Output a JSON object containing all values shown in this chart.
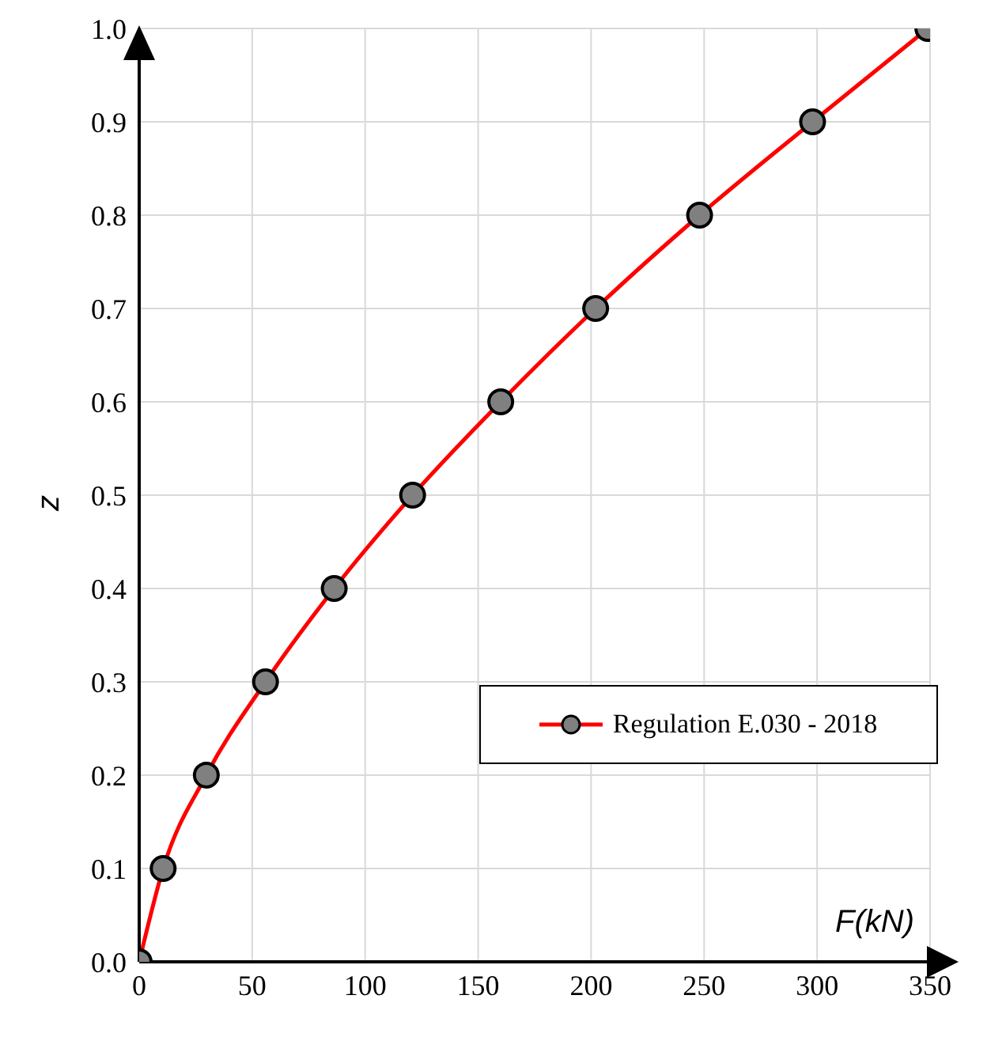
{
  "chart_data": {
    "type": "line",
    "xlabel": "F(kN)",
    "ylabel": "z",
    "x": [
      0,
      10.6,
      29.7,
      55.9,
      86.3,
      121,
      160,
      202,
      248,
      298,
      349
    ],
    "series": [
      {
        "name": "Regulation E.030 - 2018",
        "color": "#ff0000",
        "values": [
          0,
          0.1,
          0.2,
          0.3,
          0.4,
          0.5,
          0.6,
          0.7,
          0.8,
          0.9,
          1.0
        ]
      }
    ],
    "xlim": [
      0,
      350
    ],
    "xticks": [
      0,
      50,
      100,
      150,
      200,
      250,
      300,
      350
    ],
    "ylim": [
      0,
      1.0
    ],
    "yticks": [
      {
        "value": 0,
        "label": "0.0"
      },
      0.1,
      0.2,
      0.3,
      0.4,
      0.5,
      0.6,
      0.7,
      0.8,
      0.9,
      {
        "value": 1,
        "label": "1.0"
      }
    ],
    "grid": true,
    "legend": "bottom right",
    "marker": "circle",
    "line_style": "solid"
  }
}
